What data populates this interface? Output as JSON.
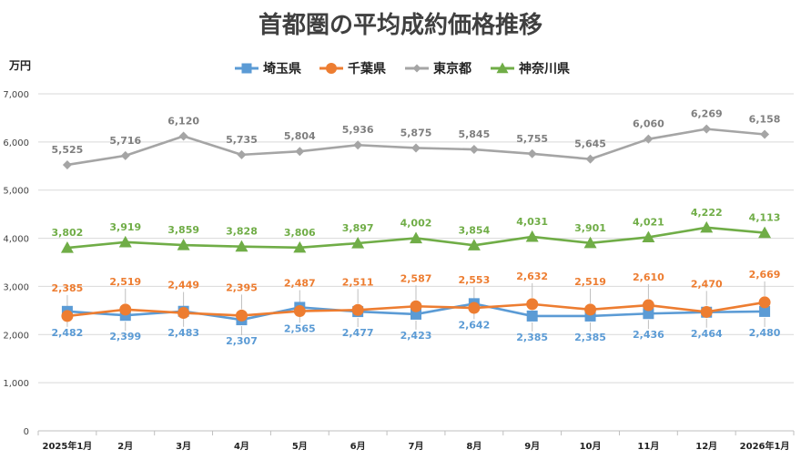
{
  "chart_data": {
    "type": "line",
    "title": "首都圏の平均成約価格推移",
    "ylabel": "万円",
    "xlabel": "",
    "ylim": [
      0,
      7000
    ],
    "yticks": [
      0,
      1000,
      2000,
      3000,
      4000,
      5000,
      6000,
      7000
    ],
    "ytick_labels": [
      "0",
      "1,000",
      "2,000",
      "3,000",
      "4,000",
      "5,000",
      "6,000",
      "7,000"
    ],
    "grid": true,
    "legend_position": "top-center",
    "categories": [
      "2025年1月",
      "2月",
      "3月",
      "4月",
      "5月",
      "6月",
      "7月",
      "8月",
      "9月",
      "10月",
      "11月",
      "12月",
      "2026年1月"
    ],
    "series": [
      {
        "name": "埼玉県",
        "color": "#5B9BD5",
        "marker": "square",
        "label_position": "below",
        "values": [
          2482,
          2399,
          2483,
          2307,
          2565,
          2477,
          2423,
          2642,
          2385,
          2385,
          2436,
          2464,
          2480
        ],
        "labels": [
          "2,482",
          "2,399",
          "2,483",
          "2,307",
          "2,565",
          "2,477",
          "2,423",
          "2,642",
          "2,385",
          "2,385",
          "2,436",
          "2,464",
          "2,480"
        ]
      },
      {
        "name": "千葉県",
        "color": "#ED7D31",
        "marker": "circle",
        "label_position": "above",
        "values": [
          2385,
          2519,
          2449,
          2395,
          2487,
          2511,
          2587,
          2553,
          2632,
          2519,
          2610,
          2470,
          2669
        ],
        "labels": [
          "2,385",
          "2,519",
          "2,449",
          "2,395",
          "2,487",
          "2,511",
          "2,587",
          "2,553",
          "2,632",
          "2,519",
          "2,610",
          "2,470",
          "2,669"
        ]
      },
      {
        "name": "東京都",
        "color": "#A5A5A5",
        "marker": "diamond",
        "label_position": "above",
        "values": [
          5525,
          5716,
          6120,
          5735,
          5804,
          5936,
          5875,
          5845,
          5755,
          5645,
          6060,
          6269,
          6158
        ],
        "labels": [
          "5,525",
          "5,716",
          "6,120",
          "5,735",
          "5,804",
          "5,936",
          "5,875",
          "5,845",
          "5,755",
          "5,645",
          "6,060",
          "6,269",
          "6,158"
        ]
      },
      {
        "name": "神奈川県",
        "color": "#70AD47",
        "marker": "triangle",
        "label_position": "above",
        "values": [
          3802,
          3919,
          3859,
          3828,
          3806,
          3897,
          4002,
          3854,
          4031,
          3901,
          4021,
          4222,
          4113
        ],
        "labels": [
          "3,802",
          "3,919",
          "3,859",
          "3,828",
          "3,806",
          "3,897",
          "4,002",
          "3,854",
          "4,031",
          "3,901",
          "4,021",
          "4,222",
          "4,113"
        ]
      }
    ]
  }
}
